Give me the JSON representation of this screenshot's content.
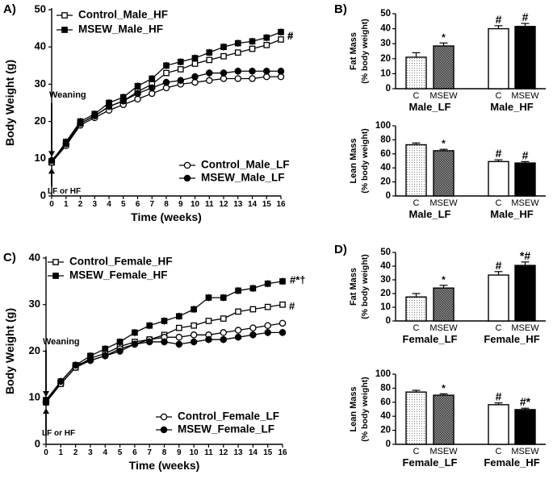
{
  "chart_data": [
    {
      "type": "line",
      "panel": "A)",
      "xlabel": "Time (weeks)",
      "ylabel": "Body Weight  (g)",
      "xlim": [
        0,
        16
      ],
      "ylim": [
        0,
        50
      ],
      "x_ticks": [
        0,
        1,
        2,
        3,
        4,
        5,
        6,
        7,
        8,
        9,
        10,
        11,
        12,
        13,
        14,
        15,
        16
      ],
      "y_ticks": [
        0,
        10,
        20,
        30,
        40,
        50
      ],
      "x": [
        0,
        1,
        2,
        3,
        4,
        5,
        6,
        7,
        8,
        9,
        10,
        11,
        12,
        13,
        14,
        15,
        16
      ],
      "series": [
        {
          "name": "Control_Male_HF",
          "marker": "open-square",
          "values": [
            9.0,
            14.0,
            19.5,
            21.5,
            24.0,
            25.5,
            28.0,
            30.0,
            33.0,
            34.0,
            35.5,
            36.5,
            37.5,
            38.5,
            39.5,
            40.5,
            42.0
          ],
          "end_label": "#"
        },
        {
          "name": "MSEW_Male_HF",
          "marker": "filled-square",
          "values": [
            9.2,
            14.5,
            20.0,
            22.0,
            25.0,
            26.5,
            29.5,
            31.5,
            35.0,
            36.0,
            37.0,
            38.5,
            40.0,
            41.0,
            41.5,
            42.5,
            44.0
          ],
          "end_label": "#"
        },
        {
          "name": "Control_Male_LF",
          "marker": "open-circle",
          "values": [
            9.0,
            13.5,
            19.0,
            21.0,
            23.0,
            24.5,
            26.0,
            27.5,
            29.0,
            30.0,
            30.5,
            31.0,
            31.5,
            31.5,
            31.5,
            32.0,
            32.0
          ],
          "end_label": ""
        },
        {
          "name": "MSEW_Male_LF",
          "marker": "filled-circle",
          "values": [
            9.5,
            14.0,
            19.5,
            21.5,
            24.0,
            25.5,
            27.5,
            29.0,
            30.5,
            31.0,
            32.0,
            33.0,
            33.0,
            33.5,
            33.5,
            33.5,
            33.5
          ],
          "end_label": ""
        }
      ],
      "legend_top": [
        "Control_Male_HF",
        "MSEW_Male_HF"
      ],
      "legend_bottom": [
        "Control_Male_LF",
        "MSEW_Male_LF"
      ],
      "annotations": {
        "weaning": "Weaning",
        "diet": "LF or HF"
      }
    },
    {
      "type": "line",
      "panel": "C)",
      "xlabel": "Time (weeks)",
      "ylabel": "Body Weight  (g)",
      "xlim": [
        0,
        16
      ],
      "ylim": [
        0,
        40
      ],
      "x_ticks": [
        0,
        1,
        2,
        3,
        4,
        5,
        6,
        7,
        8,
        9,
        10,
        11,
        12,
        13,
        14,
        15,
        16
      ],
      "y_ticks": [
        0,
        10,
        20,
        30,
        40
      ],
      "x": [
        0,
        1,
        2,
        3,
        4,
        5,
        6,
        7,
        8,
        9,
        10,
        11,
        12,
        13,
        14,
        15,
        16
      ],
      "series": [
        {
          "name": "Control_Female_HF",
          "marker": "open-square",
          "values": [
            9.0,
            13.0,
            16.5,
            18.5,
            19.5,
            21.0,
            22.0,
            22.5,
            23.5,
            25.0,
            25.5,
            26.5,
            27.0,
            28.5,
            29.0,
            29.5,
            30.0
          ],
          "end_label": "#"
        },
        {
          "name": "MSEW_Female_HF",
          "marker": "filled-square",
          "values": [
            9.5,
            13.5,
            17.0,
            19.0,
            20.5,
            22.0,
            24.0,
            25.5,
            26.5,
            27.5,
            29.0,
            31.5,
            31.5,
            33.0,
            33.5,
            34.5,
            35.0
          ],
          "end_label": "#*†"
        },
        {
          "name": "Control_Female_LF",
          "marker": "open-circle",
          "values": [
            9.0,
            13.0,
            16.5,
            18.0,
            19.0,
            20.5,
            21.5,
            22.5,
            23.0,
            23.0,
            23.5,
            23.5,
            24.0,
            24.5,
            25.0,
            25.5,
            26.0
          ],
          "end_label": ""
        },
        {
          "name": "MSEW_Female_LF",
          "marker": "filled-circle",
          "values": [
            9.2,
            13.5,
            17.0,
            18.0,
            19.0,
            20.0,
            21.5,
            22.0,
            22.0,
            21.5,
            22.0,
            22.5,
            22.5,
            23.0,
            23.5,
            24.0,
            24.0
          ],
          "end_label": ""
        }
      ],
      "legend_top": [
        "Control_Female_HF",
        "MSEW_Female_HF"
      ],
      "legend_bottom": [
        "Control_Female_LF",
        "MSEW_Female_LF"
      ],
      "annotations": {
        "weaning": "Weaning",
        "diet": "LF or HF"
      }
    },
    {
      "type": "bar",
      "panel": "B)",
      "ylabel": [
        "Fat Mass",
        "(% body weight)"
      ],
      "ylim": [
        0,
        50
      ],
      "y_ticks": [
        0,
        10,
        20,
        30,
        40,
        50
      ],
      "bars": [
        {
          "category": "C",
          "group": "Male_LF",
          "value": 21,
          "error": 3,
          "fill": "dotted",
          "sig": ""
        },
        {
          "category": "MSEW",
          "group": "Male_LF",
          "value": 28.5,
          "error": 2,
          "fill": "crosshatch",
          "sig": "*"
        },
        {
          "category": "C",
          "group": "Male_HF",
          "value": 40,
          "error": 2,
          "fill": "white",
          "sig": "#"
        },
        {
          "category": "MSEW",
          "group": "Male_HF",
          "value": 41.5,
          "error": 2,
          "fill": "black",
          "sig": "#"
        }
      ],
      "groups": [
        "Male_LF",
        "Male_HF"
      ]
    },
    {
      "type": "bar",
      "panel": "",
      "ylabel": [
        "Lean Mass",
        "(% body weight)"
      ],
      "ylim": [
        0,
        100
      ],
      "y_ticks": [
        0,
        20,
        40,
        60,
        80,
        100
      ],
      "bars": [
        {
          "category": "C",
          "group": "Male_LF",
          "value": 73,
          "error": 2.5,
          "fill": "dotted",
          "sig": ""
        },
        {
          "category": "MSEW",
          "group": "Male_LF",
          "value": 64.5,
          "error": 2,
          "fill": "crosshatch",
          "sig": "*"
        },
        {
          "category": "C",
          "group": "Male_HF",
          "value": 49,
          "error": 2.5,
          "fill": "white",
          "sig": "#"
        },
        {
          "category": "MSEW",
          "group": "Male_HF",
          "value": 47,
          "error": 2,
          "fill": "black",
          "sig": "#"
        }
      ],
      "groups": [
        "Male_LF",
        "Male_HF"
      ]
    },
    {
      "type": "bar",
      "panel": "D)",
      "ylabel": [
        "Fat Mass",
        "(% body weight)"
      ],
      "ylim": [
        0,
        50
      ],
      "y_ticks": [
        0,
        10,
        20,
        30,
        40,
        50
      ],
      "bars": [
        {
          "category": "C",
          "group": "Female_LF",
          "value": 17.5,
          "error": 2.5,
          "fill": "dotted",
          "sig": ""
        },
        {
          "category": "MSEW",
          "group": "Female_LF",
          "value": 24,
          "error": 2,
          "fill": "crosshatch",
          "sig": "*"
        },
        {
          "category": "C",
          "group": "Female_HF",
          "value": 33.5,
          "error": 2.5,
          "fill": "white",
          "sig": "#"
        },
        {
          "category": "MSEW",
          "group": "Female_HF",
          "value": 40.5,
          "error": 2.5,
          "fill": "black",
          "sig": "*#"
        }
      ],
      "groups": [
        "Female_LF",
        "Female_HF"
      ]
    },
    {
      "type": "bar",
      "panel": "",
      "ylabel": [
        "Lean Mass",
        "(% body weight)"
      ],
      "ylim": [
        0,
        100
      ],
      "y_ticks": [
        0,
        20,
        40,
        60,
        80,
        100
      ],
      "bars": [
        {
          "category": "C",
          "group": "Female_LF",
          "value": 74.5,
          "error": 2.5,
          "fill": "dotted",
          "sig": ""
        },
        {
          "category": "MSEW",
          "group": "Female_LF",
          "value": 70,
          "error": 2,
          "fill": "crosshatch",
          "sig": "*"
        },
        {
          "category": "C",
          "group": "Female_HF",
          "value": 56.5,
          "error": 2.5,
          "fill": "white",
          "sig": "#"
        },
        {
          "category": "MSEW",
          "group": "Female_HF",
          "value": 49.5,
          "error": 2,
          "fill": "black",
          "sig": "#*"
        }
      ],
      "groups": [
        "Female_LF",
        "Female_HF"
      ]
    }
  ]
}
